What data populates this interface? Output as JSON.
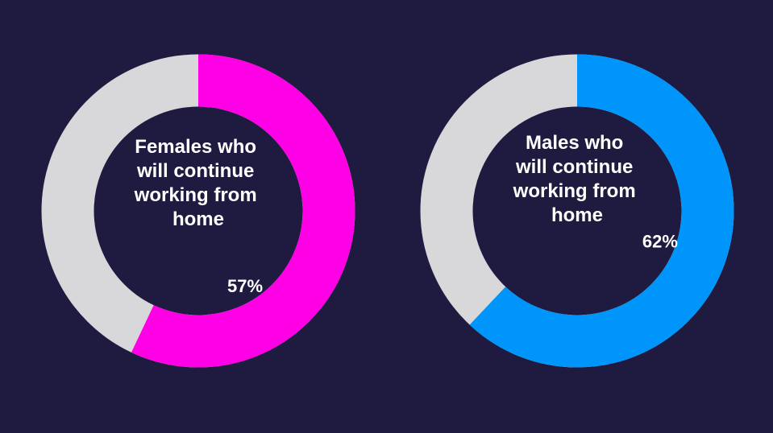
{
  "colors": {
    "background": "#1f1a3f",
    "track": "#d8d7da"
  },
  "chart_data": [
    {
      "type": "pie",
      "center_label_lines": [
        "Females who",
        "will continue",
        "working from",
        "home"
      ],
      "value": 57,
      "value_label": "57%",
      "color": "#ff00e6"
    },
    {
      "type": "pie",
      "center_label_lines": [
        "Males who",
        "will continue",
        "working from",
        "home"
      ],
      "value": 62,
      "value_label": "62%",
      "color": "#0095fa"
    }
  ]
}
